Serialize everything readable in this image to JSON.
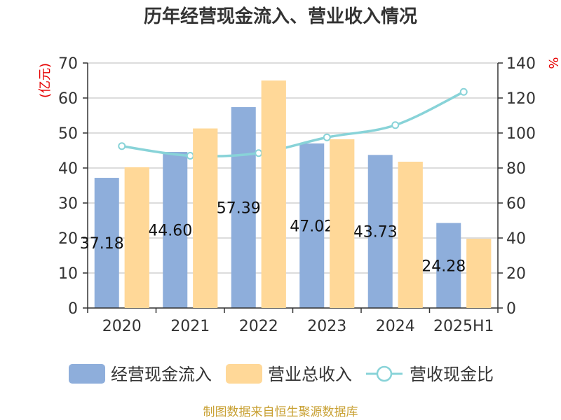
{
  "chart_data": {
    "type": "bar",
    "title": "历年经营现金流入、营业收入情况",
    "categories": [
      "2020",
      "2021",
      "2022",
      "2023",
      "2024",
      "2025H1"
    ],
    "y_left": {
      "unit": "(亿元)",
      "ylim": [
        0,
        70
      ],
      "ticks": [
        0,
        10,
        20,
        30,
        40,
        50,
        60,
        70
      ]
    },
    "y_right": {
      "unit": "%",
      "ylim": [
        0,
        140
      ],
      "ticks": [
        0,
        20,
        40,
        60,
        80,
        100,
        120,
        140
      ]
    },
    "series": [
      {
        "name": "经营现金流入",
        "type": "bar",
        "axis": "left",
        "color": "#8eaedb",
        "values": [
          37.188,
          44.604,
          57.392,
          47.02,
          43.736,
          24.287
        ],
        "labels": [
          "37.188",
          "44.604",
          "57.392",
          "47.02",
          "43.736",
          "24.287"
        ]
      },
      {
        "name": "营业总收入",
        "type": "bar",
        "axis": "left",
        "color": "#ffd898",
        "values": [
          40.2,
          51.3,
          65.0,
          48.2,
          41.8,
          19.8
        ]
      },
      {
        "name": "营收现金比",
        "type": "line",
        "axis": "right",
        "color": "#88d3d8",
        "values": [
          92.5,
          87.0,
          88.5,
          97.5,
          104.5,
          123.5
        ]
      }
    ],
    "legend_position": "bottom",
    "grid": true
  },
  "source": "制图数据来自恒生聚源数据库"
}
